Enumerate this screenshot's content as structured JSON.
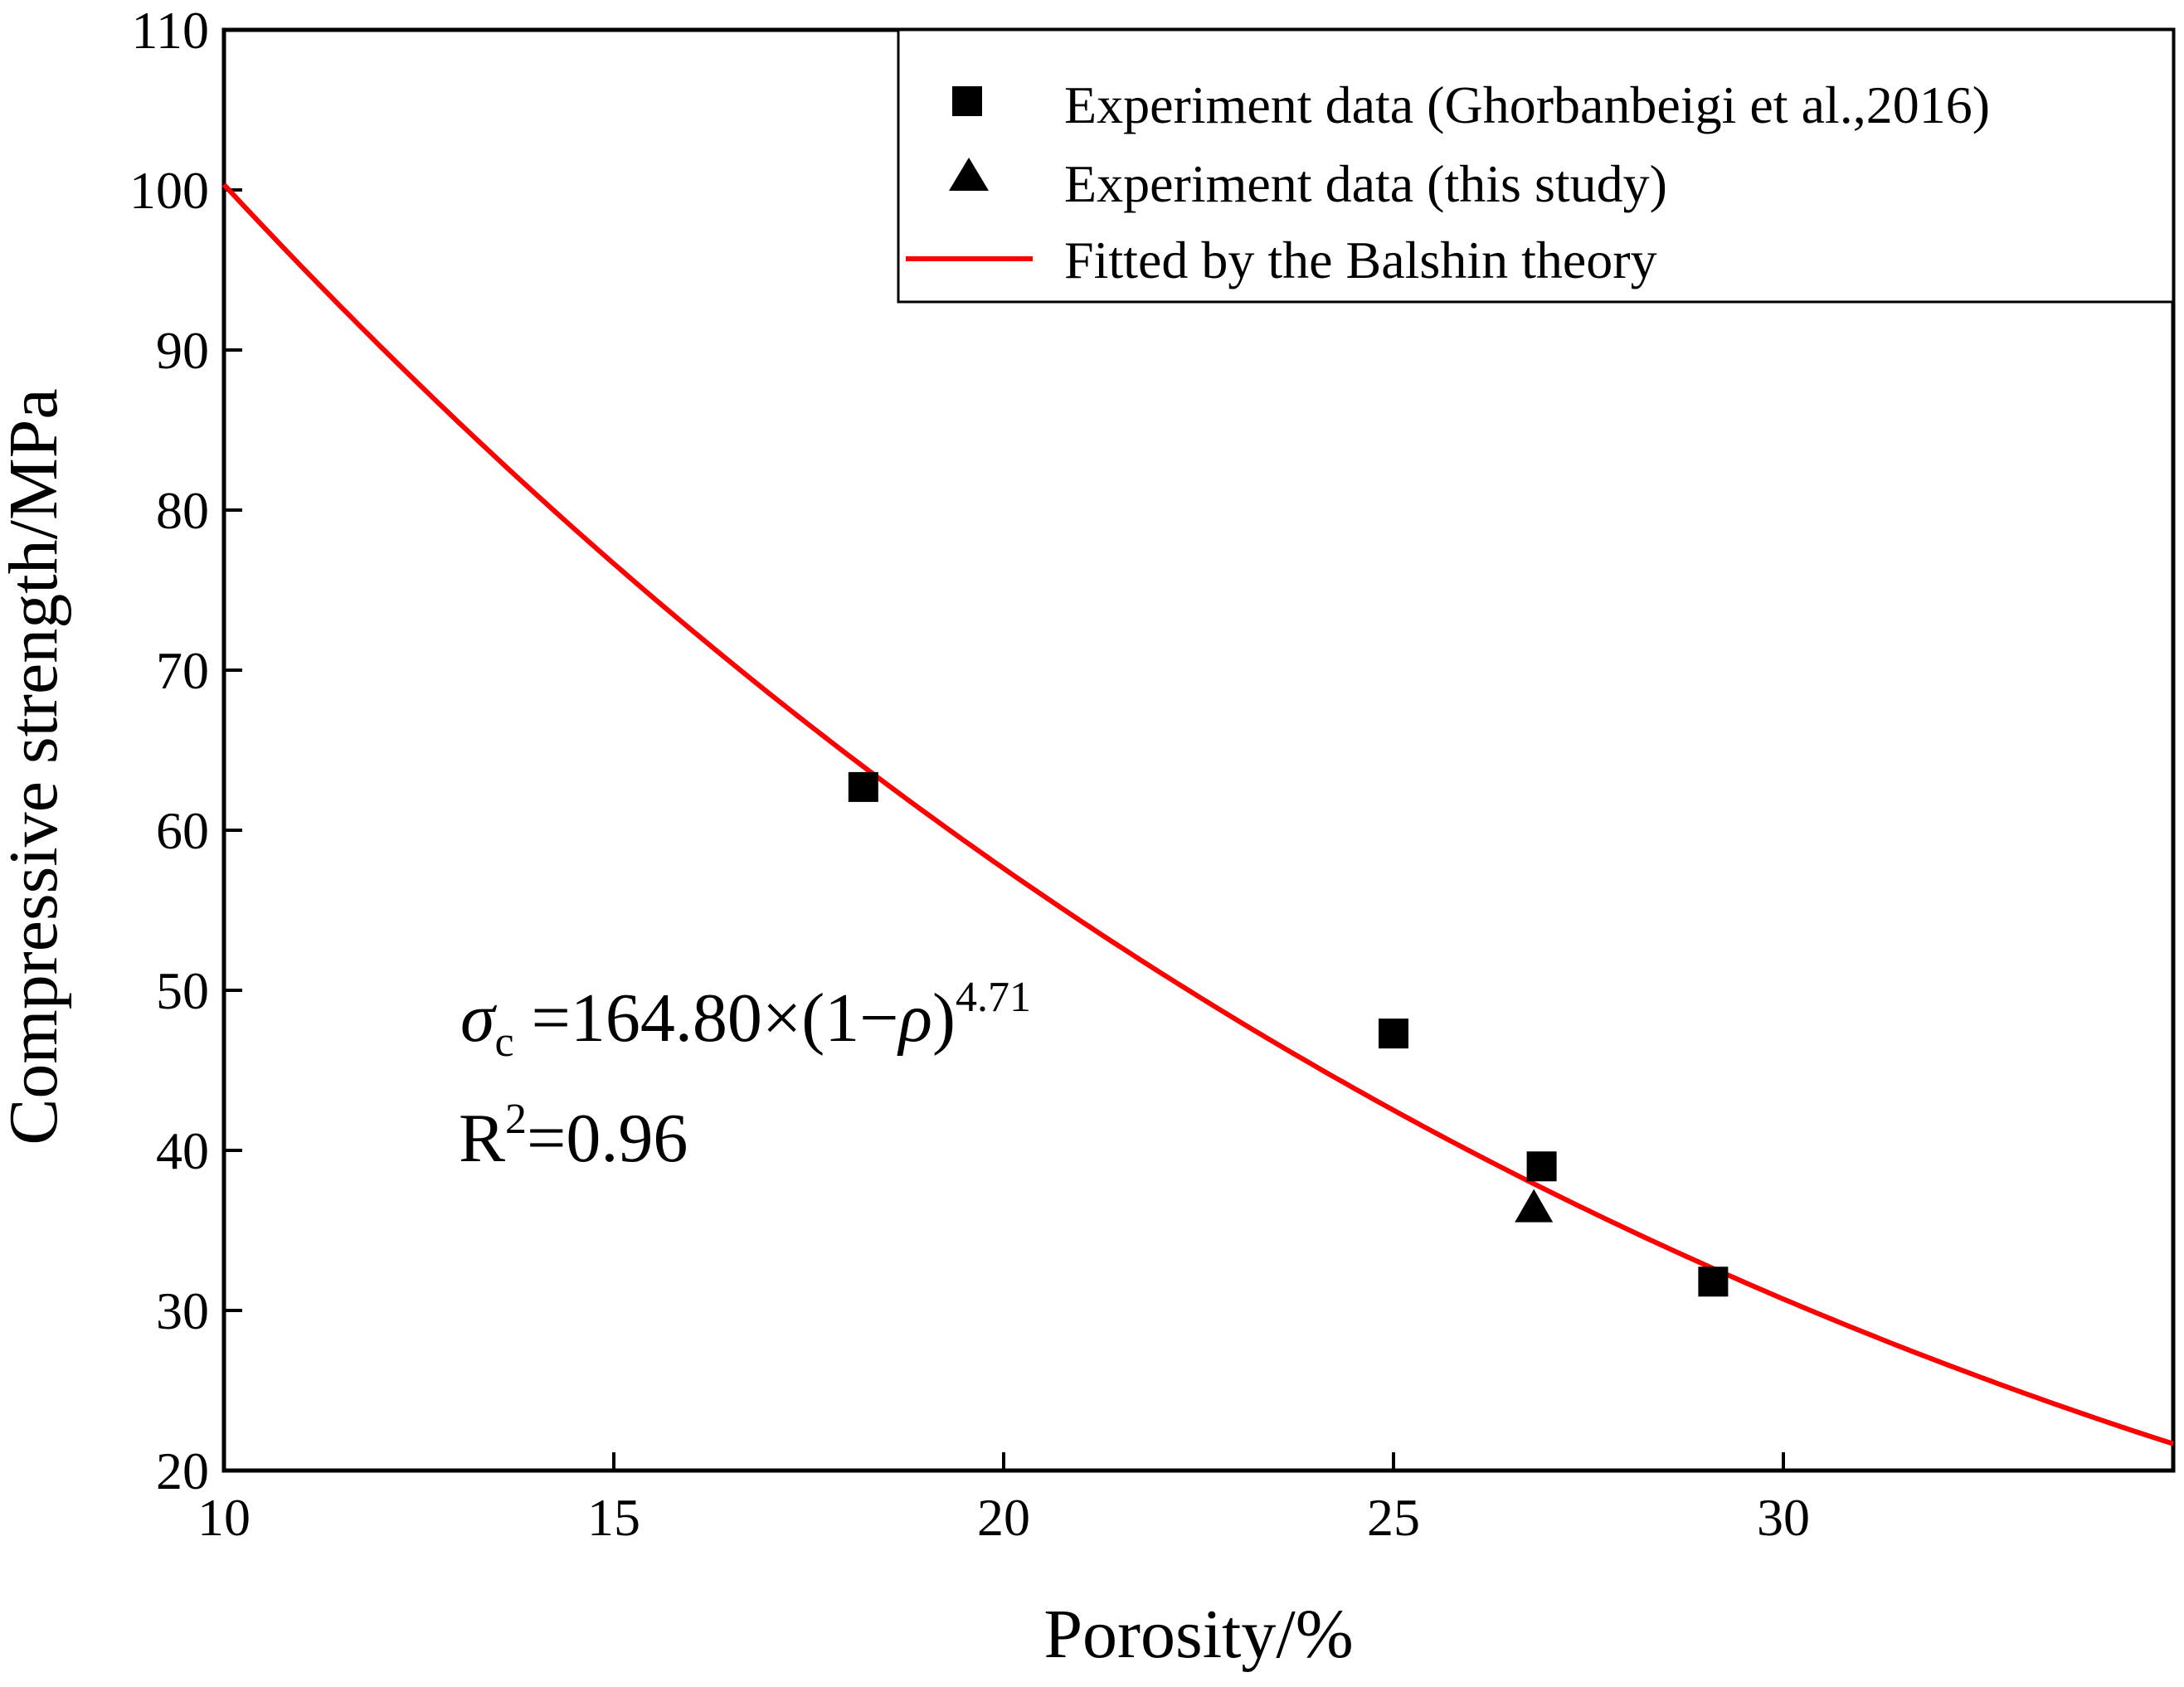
{
  "chart_data": {
    "type": "scatter",
    "xlabel": "Porosity/%",
    "ylabel": "Compressive strength/MPa",
    "xlim": [
      10,
      35
    ],
    "ylim": [
      20,
      110
    ],
    "xticks": [
      10,
      15,
      20,
      25,
      30
    ],
    "yticks": [
      20,
      30,
      40,
      50,
      60,
      70,
      80,
      90,
      100,
      110
    ],
    "xtick_labels": [
      "10",
      "15",
      "20",
      "25",
      "30"
    ],
    "ytick_labels": [
      "20",
      "30",
      "40",
      "50",
      "60",
      "70",
      "80",
      "90",
      "100",
      "110"
    ],
    "series": [
      {
        "name": "Experiment data (Ghorbanbeigi et al.,2016)",
        "marker": "square",
        "color": "#000000",
        "x": [
          18.2,
          25.0,
          26.9,
          29.1
        ],
        "y": [
          62.7,
          47.3,
          39.0,
          31.8
        ]
      },
      {
        "name": "Experiment data (this study)",
        "marker": "triangle",
        "color": "#000000",
        "x": [
          26.8
        ],
        "y": [
          36.3
        ]
      },
      {
        "name": "Fitted by the Balshin theory",
        "type": "line",
        "color": "#ff0000",
        "model": {
          "a": 164.8,
          "n": 4.71
        },
        "x_range": [
          10,
          35
        ]
      }
    ],
    "legend": {
      "position": "top-right",
      "entries": [
        "Experiment data (Ghorbanbeigi et al.,2016)",
        "Experiment data (this study)",
        "Fitted by the Balshin theory"
      ]
    },
    "annotations": {
      "sigma": "σ",
      "sigma_sub": "c",
      "equation_body": " =164.80×(1−",
      "rho": "ρ",
      "equation_close": ")",
      "equation_exp": "4.71",
      "r2_base": "R",
      "r2_exp": "2",
      "r2_value": "=0.96"
    }
  }
}
